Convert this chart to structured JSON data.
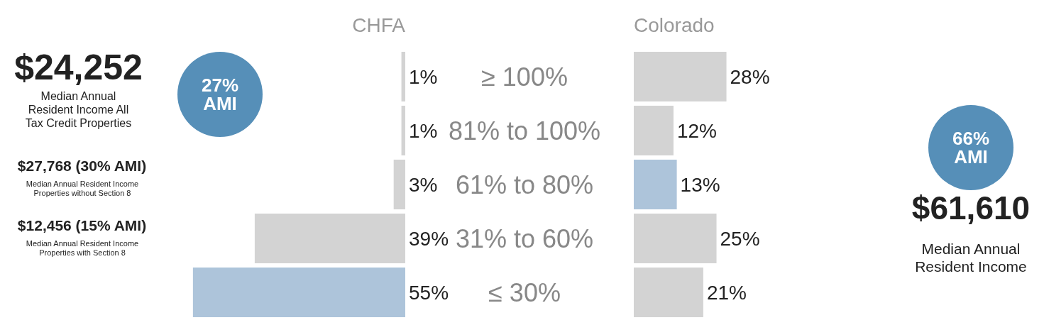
{
  "chart_data": [
    {
      "type": "bar",
      "orientation": "horizontal",
      "title": "CHFA",
      "categories": [
        "≥ 100%",
        "81% to 100%",
        "61% to 80%",
        "31% to 60%",
        "≤ 30%"
      ],
      "series": [
        {
          "colors": [
            "#d3d3d3",
            "#d3d3d3",
            "#d3d3d3",
            "#d3d3d3",
            "#adc4da"
          ],
          "values": [
            1,
            1,
            3,
            39,
            55
          ],
          "value_labels": [
            "1%",
            "1%",
            "3%",
            "39%",
            "55%"
          ]
        }
      ],
      "annotations": [
        "$24,252",
        "Median Annual Resident Income All Tax Credit Properties",
        "$27,768 (30% AMI)",
        "Median Annual Resident Income Properties without Section 8",
        "$12,456 (15% AMI)",
        "Median Annual Resident Income Properties with Section 8",
        "27% AMI"
      ]
    },
    {
      "type": "bar",
      "orientation": "horizontal",
      "title": "Colorado",
      "series": [
        {
          "colors": [
            "#d3d3d3",
            "#d3d3d3",
            "#adc4da",
            "#d3d3d3",
            "#d3d3d3"
          ],
          "values": [
            28,
            12,
            13,
            25,
            21
          ],
          "value_labels": [
            "28%",
            "12%",
            "13%",
            "25%",
            "21%"
          ]
        }
      ],
      "annotations": [
        "66% AMI",
        "$61,610",
        "Median Annual Resident Income"
      ]
    }
  ]
}
